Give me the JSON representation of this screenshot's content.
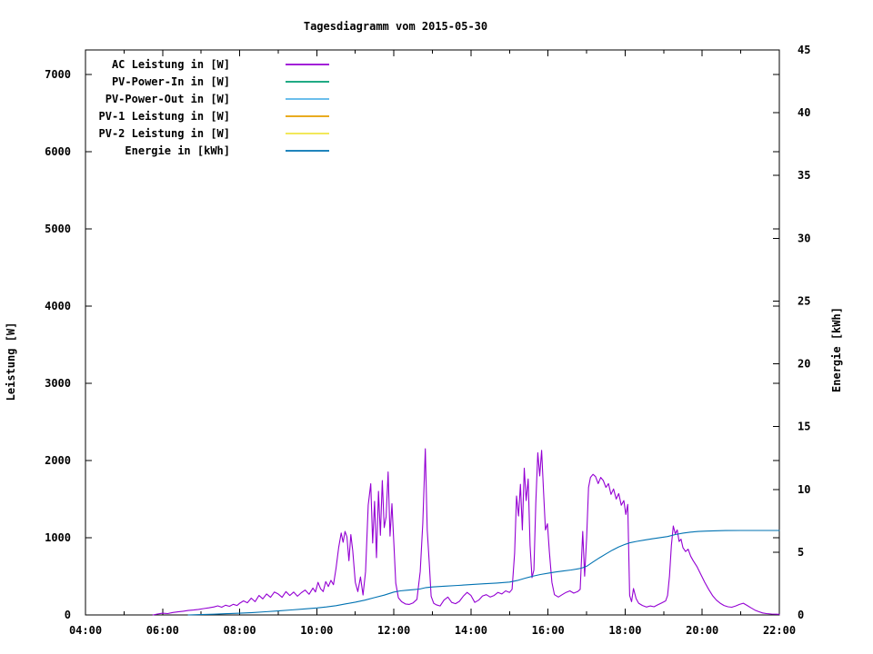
{
  "title": "Tagesdiagramm vom 2015-05-30",
  "axes": {
    "left_label": "Leistung [W]",
    "right_label": "Energie [kWh]",
    "x_range_hours": [
      4,
      22
    ],
    "left_range_w": [
      0,
      7320
    ],
    "right_range_kwh": [
      0,
      45
    ],
    "x_ticks": [
      {
        "hour": 4,
        "label": "04:00"
      },
      {
        "hour": 6,
        "label": "06:00"
      },
      {
        "hour": 8,
        "label": "08:00"
      },
      {
        "hour": 10,
        "label": "10:00"
      },
      {
        "hour": 12,
        "label": "12:00"
      },
      {
        "hour": 14,
        "label": "14:00"
      },
      {
        "hour": 16,
        "label": "16:00"
      },
      {
        "hour": 18,
        "label": "18:00"
      },
      {
        "hour": 20,
        "label": "20:00"
      },
      {
        "hour": 22,
        "label": "22:00"
      }
    ],
    "x_minor_hours": [
      5,
      7,
      9,
      11,
      13,
      15,
      17,
      19,
      21
    ],
    "left_ticks": [
      {
        "value": 0,
        "label": "0"
      },
      {
        "value": 1000,
        "label": "1000"
      },
      {
        "value": 2000,
        "label": "2000"
      },
      {
        "value": 3000,
        "label": "3000"
      },
      {
        "value": 4000,
        "label": "4000"
      },
      {
        "value": 5000,
        "label": "5000"
      },
      {
        "value": 6000,
        "label": "6000"
      },
      {
        "value": 7000,
        "label": "7000"
      }
    ],
    "right_ticks": [
      {
        "value": 0,
        "label": "0"
      },
      {
        "value": 5,
        "label": "5"
      },
      {
        "value": 10,
        "label": "10"
      },
      {
        "value": 15,
        "label": "15"
      },
      {
        "value": 20,
        "label": "20"
      },
      {
        "value": 25,
        "label": "25"
      },
      {
        "value": 30,
        "label": "30"
      },
      {
        "value": 35,
        "label": "35"
      },
      {
        "value": 40,
        "label": "40"
      },
      {
        "value": 45,
        "label": "45"
      }
    ],
    "right_mirrored_left_ticks_w": [
      1000,
      2000,
      3000,
      4000,
      5000,
      6000,
      7000
    ]
  },
  "legend": {
    "items": [
      {
        "label": "AC Leistung in [W]",
        "color": "#9400d3"
      },
      {
        "label": "PV-Power-In in [W]",
        "color": "#009e73"
      },
      {
        "label": "PV-Power-Out in [W]",
        "color": "#56b4e9"
      },
      {
        "label": "PV-1 Leistung in [W]",
        "color": "#e69f00"
      },
      {
        "label": "PV-2 Leistung in [W]",
        "color": "#f0e442"
      },
      {
        "label": "Energie in [kWh]",
        "color": "#0072b2"
      }
    ]
  },
  "chart_data": {
    "type": "line",
    "title": "Tagesdiagramm vom 2015-05-30",
    "xlabel": "",
    "ylabel_left": "Leistung [W]",
    "ylabel_right": "Energie [kWh]",
    "x_unit": "minutes_after_04:00",
    "x_tick_format": "HH:MM",
    "xlim_hours": [
      4,
      22
    ],
    "ylim_left_w": [
      0,
      7320
    ],
    "ylim_right_kwh": [
      0,
      45
    ],
    "grid": false,
    "legend_position": "top-left-inside",
    "series": [
      {
        "name": "AC Leistung in [W]",
        "color": "#9400d3",
        "axis": "left",
        "visible": true,
        "points": [
          [
            105,
            0
          ],
          [
            112,
            12
          ],
          [
            120,
            22
          ],
          [
            128,
            18
          ],
          [
            136,
            32
          ],
          [
            144,
            40
          ],
          [
            152,
            48
          ],
          [
            160,
            58
          ],
          [
            168,
            64
          ],
          [
            176,
            72
          ],
          [
            184,
            82
          ],
          [
            192,
            92
          ],
          [
            200,
            104
          ],
          [
            206,
            118
          ],
          [
            212,
            100
          ],
          [
            218,
            126
          ],
          [
            224,
            112
          ],
          [
            230,
            138
          ],
          [
            236,
            122
          ],
          [
            240,
            152
          ],
          [
            246,
            182
          ],
          [
            252,
            158
          ],
          [
            258,
            218
          ],
          [
            264,
            172
          ],
          [
            270,
            252
          ],
          [
            276,
            208
          ],
          [
            282,
            272
          ],
          [
            288,
            228
          ],
          [
            294,
            296
          ],
          [
            300,
            272
          ],
          [
            306,
            228
          ],
          [
            312,
            302
          ],
          [
            318,
            252
          ],
          [
            324,
            296
          ],
          [
            330,
            242
          ],
          [
            336,
            288
          ],
          [
            342,
            322
          ],
          [
            348,
            268
          ],
          [
            354,
            348
          ],
          [
            358,
            298
          ],
          [
            362,
            422
          ],
          [
            366,
            338
          ],
          [
            370,
            302
          ],
          [
            374,
            432
          ],
          [
            378,
            368
          ],
          [
            382,
            448
          ],
          [
            386,
            392
          ],
          [
            390,
            602
          ],
          [
            394,
            872
          ],
          [
            398,
            1062
          ],
          [
            401,
            942
          ],
          [
            404,
            1082
          ],
          [
            407,
            1012
          ],
          [
            410,
            702
          ],
          [
            413,
            1042
          ],
          [
            416,
            832
          ],
          [
            420,
            422
          ],
          [
            424,
            302
          ],
          [
            428,
            492
          ],
          [
            432,
            258
          ],
          [
            436,
            562
          ],
          [
            440,
            1422
          ],
          [
            444,
            1700
          ],
          [
            447,
            932
          ],
          [
            450,
            1472
          ],
          [
            453,
            742
          ],
          [
            456,
            1602
          ],
          [
            459,
            1032
          ],
          [
            462,
            1742
          ],
          [
            465,
            1132
          ],
          [
            468,
            1272
          ],
          [
            471,
            1852
          ],
          [
            474,
            1022
          ],
          [
            477,
            1442
          ],
          [
            480,
            932
          ],
          [
            483,
            412
          ],
          [
            487,
            222
          ],
          [
            492,
            172
          ],
          [
            498,
            142
          ],
          [
            504,
            136
          ],
          [
            510,
            156
          ],
          [
            516,
            202
          ],
          [
            521,
            562
          ],
          [
            525,
            1182
          ],
          [
            529,
            2152
          ],
          [
            532,
            1102
          ],
          [
            535,
            682
          ],
          [
            538,
            242
          ],
          [
            542,
            152
          ],
          [
            546,
            132
          ],
          [
            552,
            116
          ],
          [
            558,
            192
          ],
          [
            564,
            232
          ],
          [
            570,
            162
          ],
          [
            576,
            146
          ],
          [
            582,
            176
          ],
          [
            588,
            242
          ],
          [
            594,
            292
          ],
          [
            600,
            252
          ],
          [
            606,
            162
          ],
          [
            612,
            192
          ],
          [
            618,
            246
          ],
          [
            624,
            262
          ],
          [
            630,
            232
          ],
          [
            636,
            252
          ],
          [
            642,
            292
          ],
          [
            648,
            272
          ],
          [
            654,
            312
          ],
          [
            660,
            292
          ],
          [
            664,
            332
          ],
          [
            668,
            802
          ],
          [
            671,
            1542
          ],
          [
            674,
            1282
          ],
          [
            677,
            1692
          ],
          [
            680,
            1102
          ],
          [
            683,
            1902
          ],
          [
            686,
            1482
          ],
          [
            689,
            1762
          ],
          [
            692,
            902
          ],
          [
            695,
            482
          ],
          [
            698,
            582
          ],
          [
            701,
            1452
          ],
          [
            704,
            2102
          ],
          [
            707,
            1802
          ],
          [
            710,
            2132
          ],
          [
            713,
            1602
          ],
          [
            716,
            1102
          ],
          [
            719,
            1182
          ],
          [
            722,
            822
          ],
          [
            726,
            422
          ],
          [
            730,
            262
          ],
          [
            736,
            232
          ],
          [
            742,
            262
          ],
          [
            748,
            292
          ],
          [
            754,
            312
          ],
          [
            760,
            282
          ],
          [
            766,
            302
          ],
          [
            770,
            332
          ],
          [
            774,
            1082
          ],
          [
            777,
            502
          ],
          [
            780,
            1002
          ],
          [
            783,
            1652
          ],
          [
            786,
            1782
          ],
          [
            790,
            1822
          ],
          [
            794,
            1792
          ],
          [
            798,
            1702
          ],
          [
            802,
            1782
          ],
          [
            806,
            1742
          ],
          [
            810,
            1652
          ],
          [
            814,
            1702
          ],
          [
            818,
            1562
          ],
          [
            822,
            1632
          ],
          [
            826,
            1502
          ],
          [
            830,
            1572
          ],
          [
            834,
            1422
          ],
          [
            838,
            1482
          ],
          [
            841,
            1302
          ],
          [
            844,
            1432
          ],
          [
            847,
            252
          ],
          [
            850,
            172
          ],
          [
            853,
            342
          ],
          [
            857,
            212
          ],
          [
            861,
            152
          ],
          [
            867,
            122
          ],
          [
            873,
            102
          ],
          [
            879,
            116
          ],
          [
            885,
            106
          ],
          [
            891,
            132
          ],
          [
            897,
            156
          ],
          [
            903,
            182
          ],
          [
            906,
            252
          ],
          [
            909,
            502
          ],
          [
            912,
            902
          ],
          [
            915,
            1152
          ],
          [
            918,
            1052
          ],
          [
            921,
            1102
          ],
          [
            924,
            952
          ],
          [
            927,
            982
          ],
          [
            930,
            872
          ],
          [
            934,
            822
          ],
          [
            938,
            852
          ],
          [
            942,
            762
          ],
          [
            946,
            702
          ],
          [
            952,
            622
          ],
          [
            958,
            522
          ],
          [
            964,
            422
          ],
          [
            970,
            332
          ],
          [
            976,
            252
          ],
          [
            982,
            192
          ],
          [
            988,
            152
          ],
          [
            994,
            122
          ],
          [
            1000,
            106
          ],
          [
            1006,
            100
          ],
          [
            1012,
            116
          ],
          [
            1018,
            136
          ],
          [
            1024,
            152
          ],
          [
            1030,
            122
          ],
          [
            1036,
            92
          ],
          [
            1042,
            62
          ],
          [
            1048,
            42
          ],
          [
            1054,
            26
          ],
          [
            1060,
            18
          ],
          [
            1068,
            12
          ],
          [
            1076,
            10
          ],
          [
            1080,
            8
          ]
        ]
      },
      {
        "name": "PV-Power-In in [W]",
        "color": "#009e73",
        "axis": "left",
        "visible": false,
        "points": []
      },
      {
        "name": "PV-Power-Out in [W]",
        "color": "#56b4e9",
        "axis": "left",
        "visible": false,
        "points": []
      },
      {
        "name": "PV-1 Leistung in [W]",
        "color": "#e69f00",
        "axis": "left",
        "visible": false,
        "points": []
      },
      {
        "name": "PV-2 Leistung in [W]",
        "color": "#f0e442",
        "axis": "left",
        "visible": false,
        "points": []
      },
      {
        "name": "Energie in [kWh]",
        "color": "#0072b2",
        "axis": "right",
        "visible": true,
        "points": [
          [
            160,
            0
          ],
          [
            180,
            0.03
          ],
          [
            200,
            0.06
          ],
          [
            220,
            0.1
          ],
          [
            240,
            0.14
          ],
          [
            260,
            0.19
          ],
          [
            280,
            0.25
          ],
          [
            300,
            0.32
          ],
          [
            320,
            0.4
          ],
          [
            340,
            0.48
          ],
          [
            360,
            0.56
          ],
          [
            375,
            0.64
          ],
          [
            390,
            0.74
          ],
          [
            405,
            0.88
          ],
          [
            420,
            1.02
          ],
          [
            435,
            1.18
          ],
          [
            450,
            1.38
          ],
          [
            465,
            1.58
          ],
          [
            480,
            1.82
          ],
          [
            490,
            1.92
          ],
          [
            500,
            1.97
          ],
          [
            510,
            2.01
          ],
          [
            520,
            2.06
          ],
          [
            530,
            2.18
          ],
          [
            540,
            2.23
          ],
          [
            560,
            2.29
          ],
          [
            580,
            2.35
          ],
          [
            600,
            2.42
          ],
          [
            620,
            2.48
          ],
          [
            640,
            2.54
          ],
          [
            660,
            2.62
          ],
          [
            672,
            2.74
          ],
          [
            684,
            2.92
          ],
          [
            696,
            3.08
          ],
          [
            708,
            3.22
          ],
          [
            720,
            3.32
          ],
          [
            732,
            3.42
          ],
          [
            744,
            3.5
          ],
          [
            756,
            3.58
          ],
          [
            768,
            3.68
          ],
          [
            774,
            3.76
          ],
          [
            780,
            3.88
          ],
          [
            790,
            4.22
          ],
          [
            800,
            4.55
          ],
          [
            810,
            4.86
          ],
          [
            820,
            5.16
          ],
          [
            830,
            5.42
          ],
          [
            840,
            5.62
          ],
          [
            848,
            5.76
          ],
          [
            858,
            5.86
          ],
          [
            870,
            5.96
          ],
          [
            882,
            6.06
          ],
          [
            894,
            6.16
          ],
          [
            906,
            6.24
          ],
          [
            918,
            6.4
          ],
          [
            930,
            6.52
          ],
          [
            942,
            6.6
          ],
          [
            954,
            6.65
          ],
          [
            966,
            6.68
          ],
          [
            978,
            6.7
          ],
          [
            996,
            6.72
          ],
          [
            1020,
            6.73
          ],
          [
            1080,
            6.73
          ]
        ]
      }
    ]
  }
}
